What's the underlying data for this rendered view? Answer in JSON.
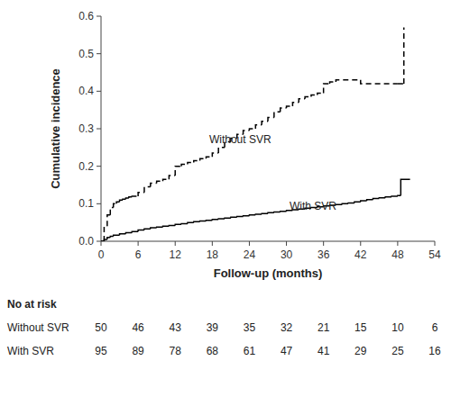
{
  "chart_data": {
    "type": "step",
    "xlabel": "Follow-up (months)",
    "ylabel": "Cumulative incidence",
    "xlim": [
      0,
      54
    ],
    "ylim": [
      0.0,
      0.6
    ],
    "xticks": [
      0,
      6,
      12,
      18,
      24,
      30,
      36,
      42,
      48,
      54
    ],
    "yticks": [
      {
        "value": 0.0,
        "label": "0.0"
      },
      0.1,
      0.2,
      0.3,
      0.4,
      0.5,
      0.6
    ],
    "grid": false,
    "series": [
      {
        "color": "#000000",
        "line_style": "dashed",
        "x": [
          0,
          0.5,
          1.0,
          1.5,
          2.0,
          2.5,
          3.0,
          3.5,
          4.0,
          4.5,
          5.0,
          6.0,
          7.0,
          8.0,
          9.0,
          10.0,
          11.0,
          12.0,
          13.0,
          14.0,
          15.0,
          16.0,
          17.0,
          18.0,
          19.0,
          20.0,
          21.0,
          22.0,
          23.0,
          24.0,
          25.0,
          26.0,
          27.0,
          28.0,
          29.0,
          30.0,
          31.0,
          32.0,
          33.0,
          34.0,
          35.0,
          36.0,
          37.0,
          38.0,
          42.0,
          48.0,
          49.0
        ],
        "values": [
          0.0,
          0.04,
          0.07,
          0.09,
          0.1,
          0.105,
          0.11,
          0.112,
          0.115,
          0.118,
          0.12,
          0.13,
          0.145,
          0.155,
          0.16,
          0.165,
          0.175,
          0.2,
          0.205,
          0.21,
          0.215,
          0.22,
          0.225,
          0.235,
          0.25,
          0.265,
          0.275,
          0.285,
          0.295,
          0.3,
          0.31,
          0.32,
          0.33,
          0.345,
          0.355,
          0.36,
          0.37,
          0.38,
          0.385,
          0.39,
          0.395,
          0.42,
          0.425,
          0.43,
          0.42,
          0.42,
          0.57
        ]
      },
      {
        "color": "#000000",
        "line_style": "solid",
        "x": [
          0,
          0.5,
          1.0,
          1.5,
          2.0,
          3.0,
          4.0,
          5.0,
          6.0,
          7.0,
          8.0,
          9.0,
          10.0,
          11.0,
          12.0,
          13.0,
          14.0,
          15.0,
          16.0,
          17.0,
          18.0,
          19.0,
          20.0,
          21.0,
          22.0,
          23.0,
          24.0,
          25.0,
          26.0,
          27.0,
          28.0,
          29.0,
          30.0,
          31.0,
          32.0,
          33.0,
          34.0,
          35.0,
          36.0,
          37.0,
          38.0,
          39.0,
          40.0,
          41.0,
          42.0,
          43.0,
          44.0,
          45.0,
          46.0,
          47.0,
          48.0,
          48.5,
          50.0
        ],
        "values": [
          0.0,
          0.005,
          0.01,
          0.013,
          0.016,
          0.02,
          0.023,
          0.026,
          0.03,
          0.033,
          0.036,
          0.038,
          0.04,
          0.042,
          0.045,
          0.047,
          0.05,
          0.052,
          0.054,
          0.056,
          0.058,
          0.06,
          0.062,
          0.064,
          0.066,
          0.068,
          0.07,
          0.072,
          0.074,
          0.076,
          0.078,
          0.08,
          0.082,
          0.084,
          0.086,
          0.088,
          0.09,
          0.092,
          0.094,
          0.096,
          0.098,
          0.1,
          0.102,
          0.105,
          0.108,
          0.111,
          0.114,
          0.116,
          0.118,
          0.12,
          0.122,
          0.165,
          0.165
        ]
      }
    ],
    "annotations": [
      {
        "text": "Without SVR",
        "x": 17.5,
        "y": 0.255
      },
      {
        "text": "With SVR",
        "x": 30.5,
        "y": 0.078
      }
    ],
    "risk_table": {
      "label": "No at risk",
      "times": [
        0,
        6,
        12,
        18,
        24,
        30,
        36,
        42,
        48,
        54
      ],
      "rows": [
        {
          "name": "Without SVR",
          "values": [
            50,
            46,
            43,
            39,
            35,
            32,
            21,
            15,
            10,
            6
          ]
        },
        {
          "name": "With SVR",
          "values": [
            95,
            89,
            78,
            68,
            61,
            47,
            41,
            29,
            25,
            16
          ]
        }
      ]
    }
  }
}
